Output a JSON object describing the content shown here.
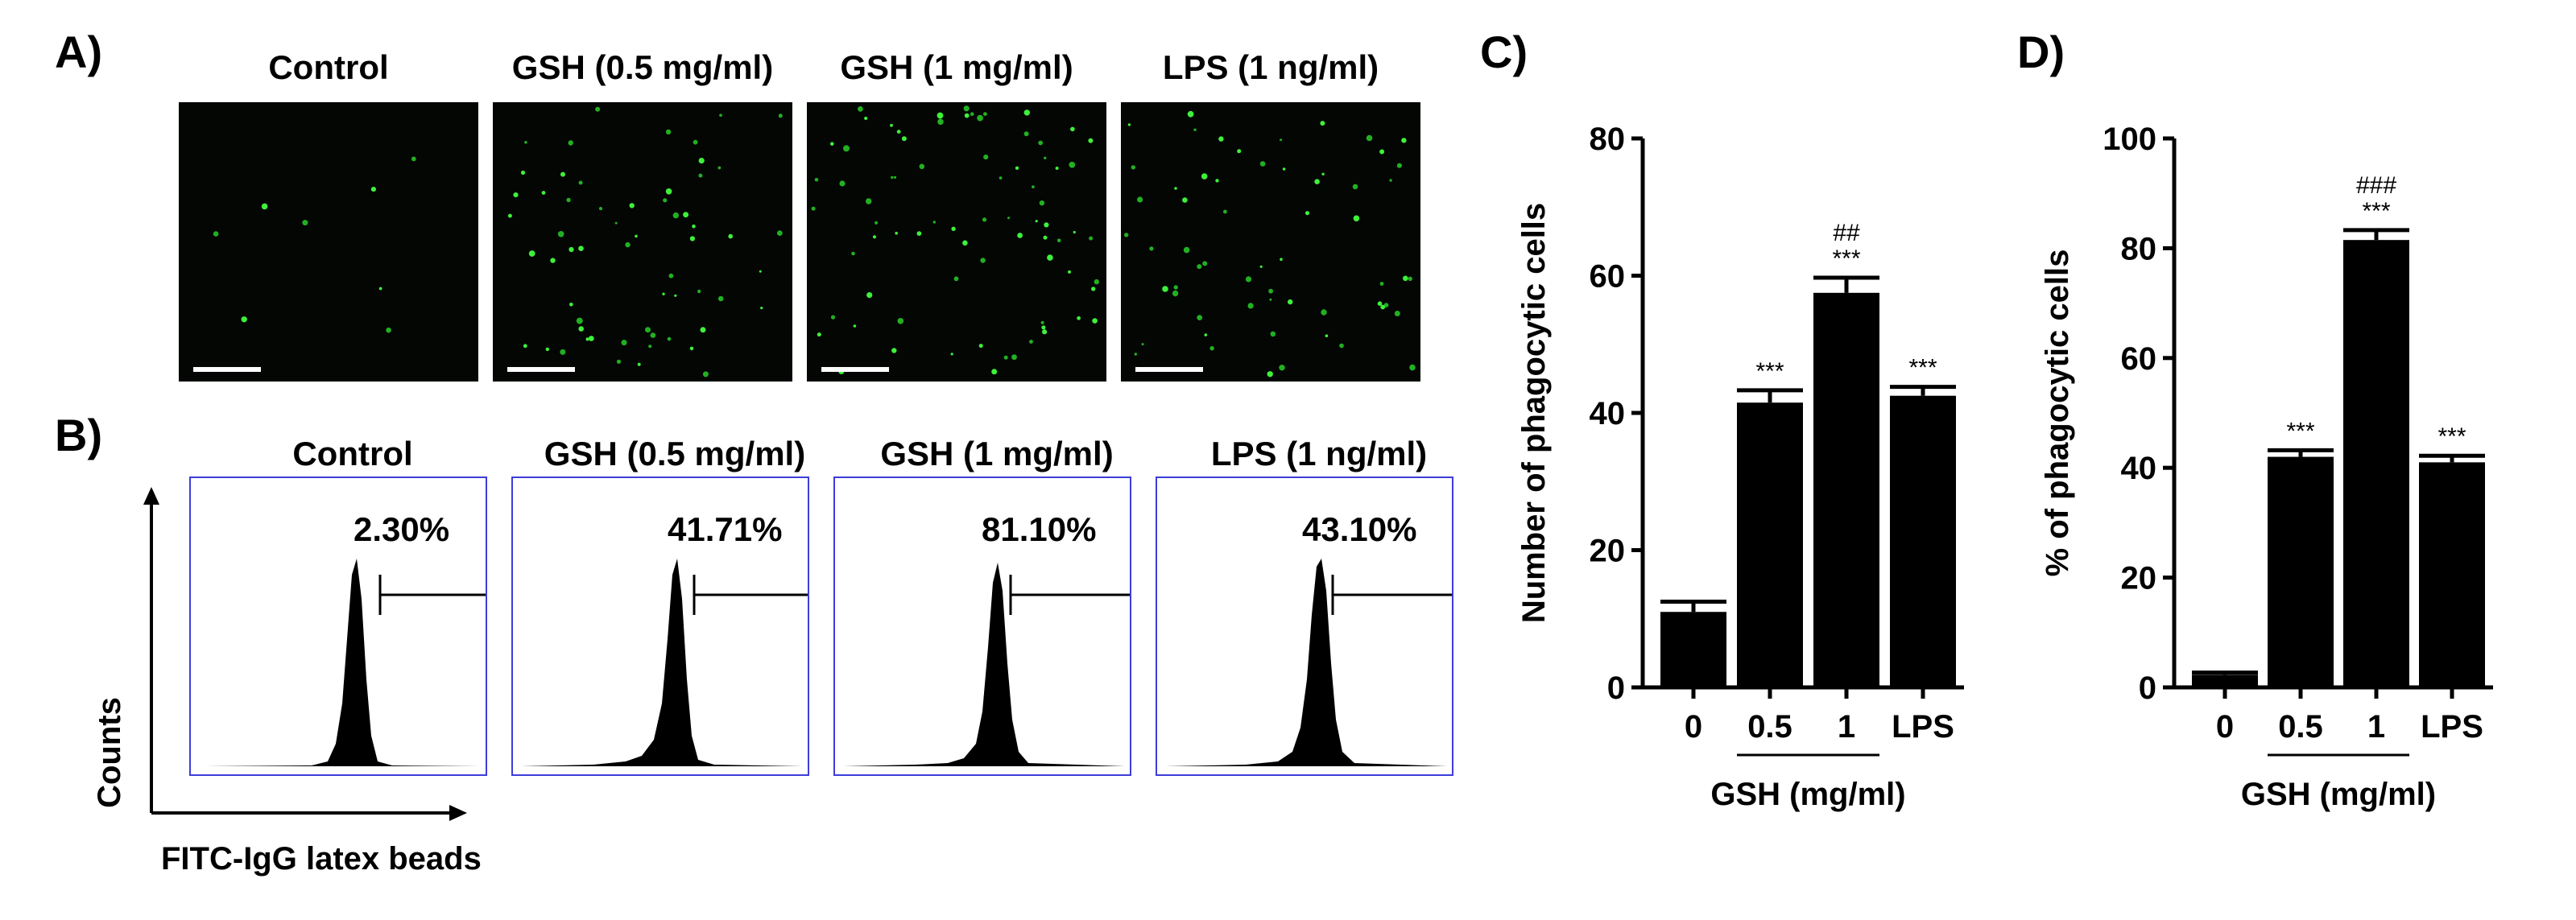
{
  "panelA": {
    "letter": "A)",
    "labels": [
      "Control",
      "GSH (0.5 mg/ml)",
      "GSH (1 mg/ml)",
      "LPS (1 ng/ml)"
    ]
  },
  "panelB": {
    "letter": "B)",
    "labels": [
      "Control",
      "GSH (0.5 mg/ml)",
      "GSH (1 mg/ml)",
      "LPS (1 ng/ml)"
    ],
    "percents": [
      "2.30%",
      "41.71%",
      "81.10%",
      "43.10%"
    ],
    "y_axis_label": "Counts",
    "x_axis_label": "FITC-IgG latex beads"
  },
  "chart_data": [
    {
      "panel": "C)",
      "type": "bar",
      "categories": [
        "0",
        "0.5",
        "1",
        "LPS"
      ],
      "values": [
        11,
        41.5,
        57.5,
        42.5
      ],
      "errors": [
        1.5,
        1.8,
        2.2,
        1.3
      ],
      "significance": [
        "",
        "***",
        "***",
        "***"
      ],
      "significance2": [
        "",
        "",
        "##",
        ""
      ],
      "ylabel": "Number of phagocytic cells",
      "xlabel": "GSH (mg/ml)",
      "yticks": [
        0,
        20,
        40,
        60,
        80
      ],
      "ylim": [
        0,
        80
      ]
    },
    {
      "panel": "D)",
      "type": "bar",
      "categories": [
        "0",
        "0.5",
        "1",
        "LPS"
      ],
      "values": [
        2.3,
        42,
        81.5,
        41
      ],
      "errors": [
        0.4,
        1.2,
        1.8,
        1.2
      ],
      "significance": [
        "",
        "***",
        "***",
        "***"
      ],
      "significance2": [
        "",
        "",
        "###",
        ""
      ],
      "ylabel": "% of phagocytic cells",
      "xlabel": "GSH (mg/ml)",
      "yticks": [
        0,
        20,
        40,
        60,
        80,
        100
      ],
      "ylim": [
        0,
        100
      ]
    }
  ]
}
